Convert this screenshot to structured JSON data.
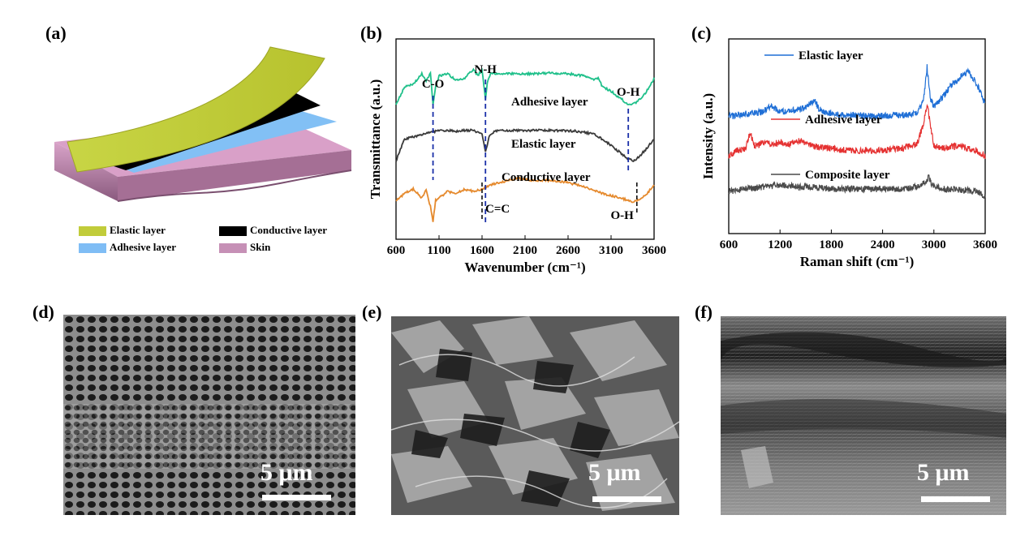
{
  "figure": {
    "panels": {
      "a": "(a)",
      "b": "(b)",
      "c": "(c)",
      "d": "(d)",
      "e": "(e)",
      "f": "(f)"
    }
  },
  "schematic": {
    "legend": [
      {
        "label": "Elastic  layer",
        "color": "#c1cc3a"
      },
      {
        "label": "Conductive layer",
        "color": "#000000"
      },
      {
        "label": "Adhesive layer",
        "color": "#7fbdf5"
      },
      {
        "label": "Skin",
        "color": "#c690b6"
      }
    ]
  },
  "chart_data": [
    {
      "type": "line",
      "panel": "(b)",
      "xlabel": "Wavenumber",
      "xunit": "(cm⁻¹)",
      "ylabel": "Transmittance (a.u.)",
      "xlim": [
        600,
        3600
      ],
      "xticks": [
        600,
        1100,
        1600,
        2100,
        2600,
        3100,
        3600
      ],
      "series": [
        {
          "name": "Adhesive layer",
          "color": "#1fc08a",
          "offset": 2.2,
          "x": [
            600,
            700,
            800,
            900,
            950,
            1000,
            1030,
            1060,
            1100,
            1200,
            1300,
            1400,
            1500,
            1550,
            1600,
            1640,
            1660,
            1700,
            1800,
            2000,
            2200,
            2400,
            2600,
            2800,
            2900,
            2950,
            3000,
            3100,
            3200,
            3300,
            3350,
            3400,
            3500,
            3600
          ],
          "y": [
            0.3,
            0.7,
            0.75,
            1.0,
            0.85,
            1.0,
            0.3,
            0.7,
            0.95,
            1.0,
            0.85,
            0.9,
            1.1,
            0.95,
            1.1,
            0.4,
            0.8,
            1.0,
            1.0,
            1.0,
            1.0,
            1.02,
            1.0,
            0.95,
            0.85,
            0.9,
            0.7,
            0.6,
            0.45,
            0.3,
            0.3,
            0.35,
            0.55,
            0.9
          ]
        },
        {
          "name": "Elastic layer",
          "color": "#3a3a3a",
          "offset": 1.1,
          "x": [
            600,
            700,
            800,
            900,
            1000,
            1100,
            1200,
            1300,
            1400,
            1500,
            1600,
            1640,
            1680,
            1750,
            1900,
            2100,
            2400,
            2700,
            2900,
            3000,
            3100,
            3200,
            3300,
            3350,
            3400,
            3500,
            3600
          ],
          "y": [
            0.1,
            0.6,
            0.65,
            0.7,
            0.75,
            0.8,
            0.8,
            0.78,
            0.8,
            0.8,
            0.7,
            0.3,
            0.65,
            0.78,
            0.8,
            0.8,
            0.8,
            0.78,
            0.72,
            0.6,
            0.45,
            0.3,
            0.15,
            0.1,
            0.15,
            0.35,
            0.6
          ]
        },
        {
          "name": "Conductive layer",
          "color": "#e58a2e",
          "offset": 0.0,
          "x": [
            600,
            700,
            800,
            900,
            950,
            1000,
            1030,
            1060,
            1100,
            1200,
            1300,
            1400,
            1500,
            1600,
            1700,
            1800,
            2000,
            2200,
            2400,
            2600,
            2800,
            3000,
            3200,
            3300,
            3350,
            3400,
            3500,
            3600
          ],
          "y": [
            0.3,
            0.45,
            0.55,
            0.35,
            0.55,
            0.15,
            -0.2,
            0.3,
            0.35,
            0.5,
            0.45,
            0.55,
            0.5,
            0.55,
            0.65,
            0.7,
            0.8,
            0.75,
            0.75,
            0.7,
            0.6,
            0.45,
            0.35,
            0.3,
            0.25,
            0.3,
            0.4,
            0.65
          ]
        }
      ],
      "annotations": [
        {
          "text": "C-O",
          "x": 1030
        },
        {
          "text": "N-H",
          "x": 1640
        },
        {
          "text": "O-H",
          "x": 3300
        },
        {
          "text": "C=C",
          "x": 1600
        },
        {
          "text": "O-H",
          "x": 3400
        }
      ]
    },
    {
      "type": "line",
      "panel": "(c)",
      "xlabel": "Raman shift",
      "xunit": "(cm⁻¹)",
      "ylabel": "Intensity (a.u.)",
      "xlim": [
        600,
        3600
      ],
      "xticks": [
        600,
        1200,
        1800,
        2400,
        3000,
        3600
      ],
      "series": [
        {
          "name": "Elastic layer",
          "color": "#1f6fd6",
          "offset": 2.0,
          "x": [
            600,
            800,
            1000,
            1100,
            1200,
            1400,
            1500,
            1600,
            1650,
            1700,
            1800,
            2000,
            2200,
            2400,
            2600,
            2800,
            2880,
            2920,
            2960,
            3000,
            3100,
            3200,
            3300,
            3400,
            3500,
            3600
          ],
          "y": [
            0.1,
            0.15,
            0.2,
            0.35,
            0.2,
            0.25,
            0.3,
            0.5,
            0.3,
            0.2,
            0.15,
            0.12,
            0.1,
            0.1,
            0.12,
            0.15,
            0.5,
            1.3,
            0.5,
            0.35,
            0.55,
            0.85,
            1.05,
            1.2,
            0.9,
            0.4
          ]
        },
        {
          "name": "Adhesive layer",
          "color": "#e53232",
          "offset": 1.0,
          "x": [
            600,
            700,
            800,
            850,
            900,
            1000,
            1100,
            1200,
            1300,
            1400,
            1500,
            1600,
            1800,
            2000,
            2200,
            2400,
            2600,
            2800,
            2880,
            2920,
            2960,
            3000,
            3100,
            3200,
            3300,
            3400,
            3500,
            3600
          ],
          "y": [
            0.1,
            0.25,
            0.3,
            0.7,
            0.35,
            0.45,
            0.4,
            0.45,
            0.4,
            0.5,
            0.45,
            0.35,
            0.3,
            0.25,
            0.25,
            0.25,
            0.3,
            0.4,
            0.9,
            1.4,
            0.9,
            0.35,
            0.3,
            0.35,
            0.35,
            0.3,
            0.25,
            0.1
          ]
        },
        {
          "name": "Composite layer",
          "color": "#4a4a4a",
          "offset": 0.0,
          "x": [
            600,
            800,
            1000,
            1200,
            1400,
            1600,
            1800,
            2000,
            2200,
            2400,
            2600,
            2800,
            2900,
            2940,
            2980,
            3100,
            3300,
            3500,
            3600
          ],
          "y": [
            0.25,
            0.3,
            0.35,
            0.4,
            0.35,
            0.35,
            0.3,
            0.3,
            0.3,
            0.3,
            0.3,
            0.35,
            0.45,
            0.6,
            0.4,
            0.3,
            0.28,
            0.25,
            0.1
          ]
        }
      ]
    }
  ],
  "sem": {
    "scalebar_label": "5 μm"
  }
}
